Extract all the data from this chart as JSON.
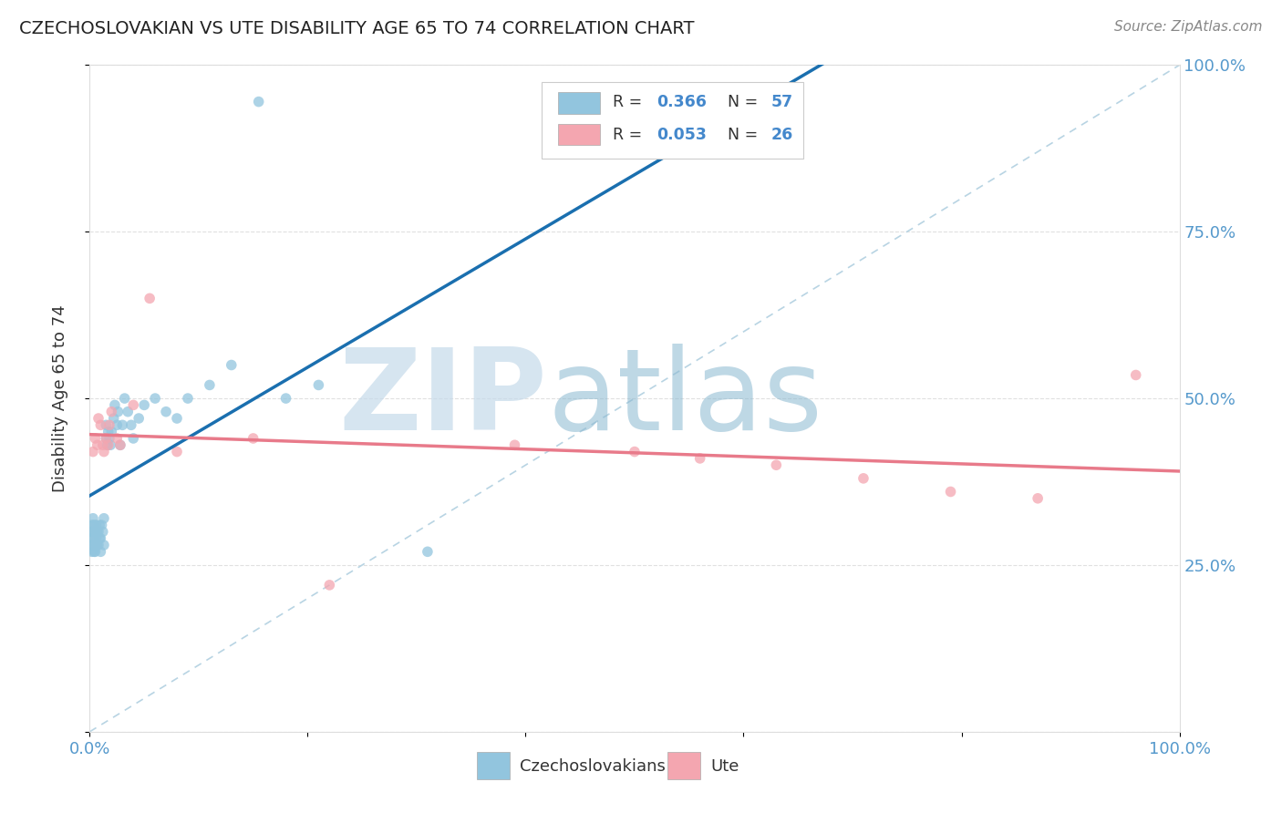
{
  "title": "CZECHOSLOVAKIAN VS UTE DISABILITY AGE 65 TO 74 CORRELATION CHART",
  "source": "Source: ZipAtlas.com",
  "ylabel": "Disability Age 65 to 74",
  "legend_blue_r": "0.366",
  "legend_blue_n": "57",
  "legend_pink_r": "0.053",
  "legend_pink_n": "26",
  "legend_label_blue": "Czechoslovakians",
  "legend_label_pink": "Ute",
  "blue_color": "#92c5de",
  "pink_color": "#f4a6b0",
  "blue_line_color": "#1a6faf",
  "pink_line_color": "#e87a8a",
  "diag_line_color": "#b8d4e3",
  "watermark_zip": "ZIP",
  "watermark_atlas": "atlas",
  "background_color": "#ffffff",
  "grid_color": "#e0e0e0",
  "right_tick_color": "#5599cc",
  "bottom_tick_color": "#5599cc",
  "blue_x": [
    0.001,
    0.001,
    0.002,
    0.002,
    0.002,
    0.003,
    0.003,
    0.003,
    0.004,
    0.004,
    0.004,
    0.005,
    0.005,
    0.005,
    0.006,
    0.006,
    0.007,
    0.007,
    0.008,
    0.008,
    0.009,
    0.009,
    0.01,
    0.01,
    0.011,
    0.012,
    0.013,
    0.013,
    0.015,
    0.015,
    0.016,
    0.017,
    0.018,
    0.019,
    0.02,
    0.022,
    0.023,
    0.025,
    0.026,
    0.028,
    0.03,
    0.032,
    0.035,
    0.038,
    0.04,
    0.045,
    0.05,
    0.06,
    0.07,
    0.08,
    0.09,
    0.11,
    0.13,
    0.155,
    0.18,
    0.21,
    0.31
  ],
  "blue_y": [
    0.28,
    0.3,
    0.27,
    0.29,
    0.31,
    0.28,
    0.3,
    0.32,
    0.27,
    0.29,
    0.31,
    0.28,
    0.3,
    0.27,
    0.29,
    0.31,
    0.28,
    0.3,
    0.28,
    0.3,
    0.29,
    0.31,
    0.27,
    0.29,
    0.31,
    0.3,
    0.32,
    0.28,
    0.44,
    0.46,
    0.43,
    0.45,
    0.44,
    0.43,
    0.45,
    0.47,
    0.49,
    0.46,
    0.48,
    0.43,
    0.46,
    0.5,
    0.48,
    0.46,
    0.44,
    0.47,
    0.49,
    0.5,
    0.48,
    0.47,
    0.5,
    0.52,
    0.55,
    0.945,
    0.5,
    0.52,
    0.27
  ],
  "pink_x": [
    0.003,
    0.005,
    0.007,
    0.008,
    0.01,
    0.012,
    0.013,
    0.015,
    0.017,
    0.018,
    0.02,
    0.025,
    0.028,
    0.04,
    0.055,
    0.08,
    0.15,
    0.22,
    0.39,
    0.5,
    0.56,
    0.63,
    0.71,
    0.79,
    0.87,
    0.96
  ],
  "pink_y": [
    0.42,
    0.44,
    0.43,
    0.47,
    0.46,
    0.43,
    0.42,
    0.44,
    0.43,
    0.46,
    0.48,
    0.44,
    0.43,
    0.49,
    0.65,
    0.42,
    0.44,
    0.22,
    0.43,
    0.42,
    0.41,
    0.4,
    0.38,
    0.36,
    0.35,
    0.535
  ]
}
